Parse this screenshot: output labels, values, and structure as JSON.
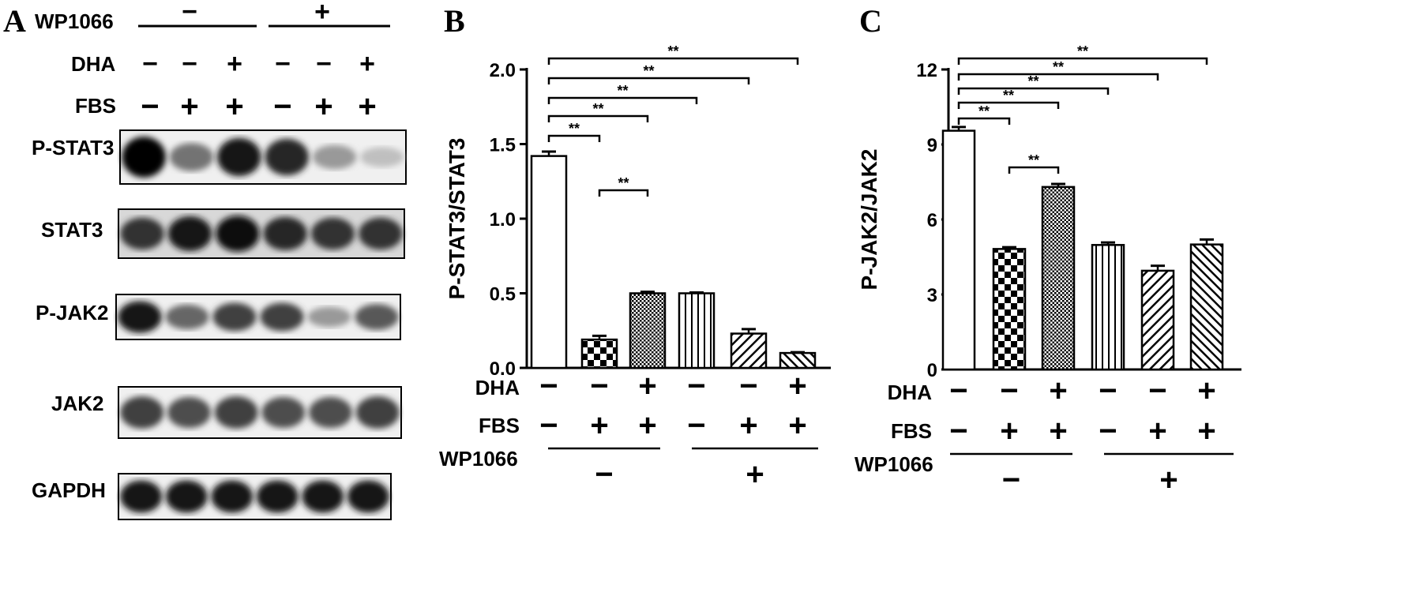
{
  "panels": {
    "a": "A",
    "b": "B",
    "c": "C"
  },
  "blot": {
    "wp_label": "WP1066",
    "wp_groups": [
      "−",
      "+"
    ],
    "dha_label": "DHA",
    "dha_signs": [
      "−",
      "−",
      "+",
      "−",
      "−",
      "+"
    ],
    "fbs_label": "FBS",
    "fbs_signs": [
      "−",
      "+",
      "+",
      "−",
      "+",
      "+"
    ],
    "rows": [
      {
        "name": "P-STAT3",
        "intensity": [
          1.0,
          0.55,
          0.9,
          0.85,
          0.4,
          0.25
        ]
      },
      {
        "name": "STAT3",
        "intensity": [
          0.8,
          0.9,
          0.95,
          0.85,
          0.8,
          0.8
        ]
      },
      {
        "name": "P-JAK2",
        "intensity": [
          0.9,
          0.6,
          0.75,
          0.75,
          0.4,
          0.65
        ]
      },
      {
        "name": "JAK2",
        "intensity": [
          0.75,
          0.7,
          0.75,
          0.7,
          0.7,
          0.75
        ]
      },
      {
        "name": "GAPDH",
        "intensity": [
          0.9,
          0.9,
          0.9,
          0.9,
          0.9,
          0.9
        ]
      }
    ]
  },
  "conditions": {
    "dha_label": "DHA",
    "fbs_label": "FBS",
    "wp_label": "WP1066",
    "dha_signs": [
      "−",
      "−",
      "+",
      "−",
      "−",
      "+"
    ],
    "fbs_signs": [
      "−",
      "+",
      "+",
      "−",
      "+",
      "+"
    ],
    "wp_groups": [
      "−",
      "+"
    ]
  },
  "chart_data": [
    {
      "type": "bar",
      "panel": "B",
      "ylabel": "P-STAT3/STAT3",
      "ylim": [
        0,
        2.0
      ],
      "yticks": [
        "0.0",
        "0.5",
        "1.0",
        "1.5",
        "2.0"
      ],
      "values": [
        1.42,
        0.19,
        0.5,
        0.5,
        0.23,
        0.1
      ],
      "errors": [
        0.03,
        0.025,
        0.01,
        0.005,
        0.03,
        0.005
      ],
      "patterns": [
        "none",
        "checker",
        "dots",
        "vertical",
        "diag-right",
        "diag-left"
      ],
      "significance": [
        {
          "from": 0,
          "to": 1,
          "label": "**"
        },
        {
          "from": 1,
          "to": 2,
          "label": "**"
        },
        {
          "from": 0,
          "to": 2,
          "label": "**"
        },
        {
          "from": 0,
          "to": 3,
          "label": "**"
        },
        {
          "from": 0,
          "to": 4,
          "label": "**"
        },
        {
          "from": 0,
          "to": 5,
          "label": "**"
        }
      ]
    },
    {
      "type": "bar",
      "panel": "C",
      "ylabel": "P-JAK2/JAK2",
      "ylim": [
        0,
        12
      ],
      "yticks": [
        "0",
        "3",
        "6",
        "9",
        "12"
      ],
      "values": [
        9.55,
        4.82,
        7.3,
        4.98,
        3.95,
        5.0
      ],
      "errors": [
        0.15,
        0.07,
        0.12,
        0.1,
        0.2,
        0.2
      ],
      "patterns": [
        "none",
        "checker",
        "dots",
        "vertical",
        "diag-right",
        "diag-left"
      ],
      "significance": [
        {
          "from": 0,
          "to": 1,
          "label": "**"
        },
        {
          "from": 1,
          "to": 2,
          "label": "**"
        },
        {
          "from": 0,
          "to": 2,
          "label": "**"
        },
        {
          "from": 0,
          "to": 3,
          "label": "**"
        },
        {
          "from": 0,
          "to": 4,
          "label": "**"
        },
        {
          "from": 0,
          "to": 5,
          "label": "**"
        }
      ]
    }
  ]
}
